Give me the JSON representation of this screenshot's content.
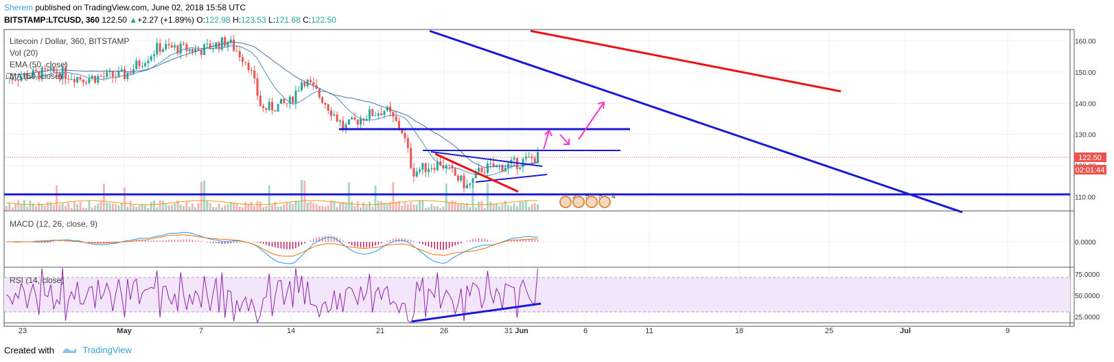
{
  "header": {
    "author": "Sherem",
    "published": "published on TradingView.com, June 02, 2018 15:58 UTC",
    "symbol": "BITSTAMP:LTCUSD, 360",
    "last": "122.50",
    "change_arrow": "▲",
    "change": "+2.27 (+1.89%)",
    "o_label": "O:",
    "o": "122.98",
    "h_label": "H:",
    "h": "123.53",
    "l_label": "L:",
    "l": "121.68",
    "c_label": "C:",
    "c": "122.50"
  },
  "footer": {
    "created": "Created with",
    "brand": "TradingView"
  },
  "colors": {
    "up": "#26a69a",
    "down": "#ef5350",
    "blue_line": "#1a1ad6",
    "red_line": "#ee1111",
    "magenta": "#ff33cc",
    "rsi_band": "#f3e5fa",
    "macd": "#2196f3",
    "signal": "#ff6d00"
  },
  "chart_data": {
    "type": "candlestick",
    "indicators": {
      "legend": [
        "Litecoin / Dollar, 360, BITSTAMP",
        "Vol (20)",
        "EMA (50, close)",
        "MA (50, close)"
      ],
      "macd_label": "MACD (12, 26, close, 9)",
      "rsi_label": "RSI (14, close)"
    },
    "x_ticks": [
      "23",
      "May",
      "7",
      "14",
      "21",
      "26",
      "31",
      "Jun",
      "6",
      "11",
      "18",
      "25",
      "Jul",
      "9"
    ],
    "price_axis": {
      "ticks": [
        "160.00",
        "150.00",
        "140.00",
        "130.00",
        "120.00",
        "110.00"
      ],
      "ylim": [
        107,
        163
      ]
    },
    "macd_axis": {
      "ticks": [
        "0.0000"
      ]
    },
    "rsi_axis": {
      "ticks": [
        "75.0000",
        "50.0000",
        "25.0000"
      ]
    },
    "last_price_label": "122.50",
    "countdown_label": "02:01:44",
    "event_markers": [
      "2",
      "5",
      "5",
      "4"
    ]
  }
}
